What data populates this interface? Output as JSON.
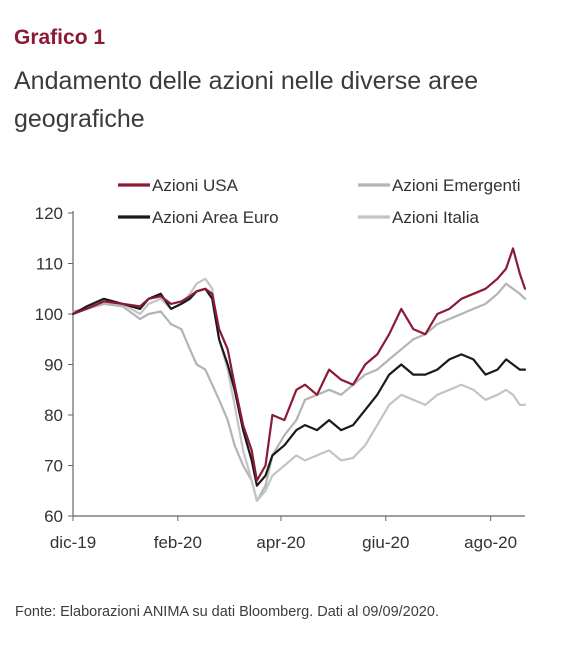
{
  "header": {
    "heading": "Grafico 1",
    "title": "Andamento delle azioni nelle diverse aree geografiche"
  },
  "source": "Fonte: Elaborazioni ANIMA su dati Bloomberg. Dati al 09/09/2020.",
  "chart_data": {
    "type": "line",
    "title": "",
    "xlabel": "",
    "ylabel": "",
    "ylim": [
      60,
      120
    ],
    "xlim": [
      "2019-12-02",
      "2020-08-21"
    ],
    "y_ticks": [
      60,
      70,
      80,
      90,
      100,
      110,
      120
    ],
    "x_ticks": [
      {
        "label": "dic-19",
        "date": "2019-12-02"
      },
      {
        "label": "feb-20",
        "date": "2020-02-01"
      },
      {
        "label": "apr-20",
        "date": "2020-04-01"
      },
      {
        "label": "giu-20",
        "date": "2020-06-01"
      },
      {
        "label": "ago-20",
        "date": "2020-08-01"
      }
    ],
    "grid": false,
    "legend_position": "top",
    "series": [
      {
        "name": "Azioni Emergenti",
        "color": "#b4b4b4",
        "points": [
          [
            "2019-12-02",
            100.5
          ],
          [
            "2019-12-10",
            101
          ],
          [
            "2019-12-20",
            102
          ],
          [
            "2019-12-31",
            101.5
          ],
          [
            "2020-01-10",
            99
          ],
          [
            "2020-01-15",
            100
          ],
          [
            "2020-01-22",
            100.5
          ],
          [
            "2020-01-28",
            98
          ],
          [
            "2020-02-03",
            97
          ],
          [
            "2020-02-08",
            93
          ],
          [
            "2020-02-12",
            90
          ],
          [
            "2020-02-17",
            89
          ],
          [
            "2020-02-21",
            86
          ],
          [
            "2020-02-25",
            83
          ],
          [
            "2020-03-01",
            79
          ],
          [
            "2020-03-05",
            74
          ],
          [
            "2020-03-10",
            70
          ],
          [
            "2020-03-15",
            67
          ],
          [
            "2020-03-18",
            63
          ],
          [
            "2020-03-23",
            66
          ],
          [
            "2020-03-27",
            72
          ],
          [
            "2020-04-03",
            76
          ],
          [
            "2020-04-10",
            79
          ],
          [
            "2020-04-15",
            83
          ],
          [
            "2020-04-22",
            84
          ],
          [
            "2020-04-29",
            85
          ],
          [
            "2020-05-06",
            84
          ],
          [
            "2020-05-13",
            86
          ],
          [
            "2020-05-20",
            88
          ],
          [
            "2020-05-27",
            89
          ],
          [
            "2020-06-03",
            91
          ],
          [
            "2020-06-10",
            93
          ],
          [
            "2020-06-17",
            95
          ],
          [
            "2020-06-24",
            96
          ],
          [
            "2020-07-01",
            98
          ],
          [
            "2020-07-08",
            99
          ],
          [
            "2020-07-15",
            100
          ],
          [
            "2020-07-22",
            101
          ],
          [
            "2020-07-29",
            102
          ],
          [
            "2020-08-05",
            104
          ],
          [
            "2020-08-10",
            106
          ],
          [
            "2020-08-14",
            105
          ],
          [
            "2020-08-18",
            104
          ],
          [
            "2020-08-21",
            103
          ]
        ]
      },
      {
        "name": "Azioni Italia",
        "color": "#c4c4c4",
        "points": [
          [
            "2019-12-02",
            100
          ],
          [
            "2019-12-10",
            101
          ],
          [
            "2019-12-20",
            102.5
          ],
          [
            "2019-12-31",
            102
          ],
          [
            "2020-01-10",
            100
          ],
          [
            "2020-01-15",
            102
          ],
          [
            "2020-01-22",
            103
          ],
          [
            "2020-01-28",
            101
          ],
          [
            "2020-02-03",
            102
          ],
          [
            "2020-02-08",
            104
          ],
          [
            "2020-02-12",
            106
          ],
          [
            "2020-02-17",
            107
          ],
          [
            "2020-02-21",
            105
          ],
          [
            "2020-02-25",
            95
          ],
          [
            "2020-03-01",
            89
          ],
          [
            "2020-03-05",
            82
          ],
          [
            "2020-03-10",
            73
          ],
          [
            "2020-03-15",
            67
          ],
          [
            "2020-03-18",
            63
          ],
          [
            "2020-03-23",
            65
          ],
          [
            "2020-03-27",
            68
          ],
          [
            "2020-04-03",
            70
          ],
          [
            "2020-04-10",
            72
          ],
          [
            "2020-04-15",
            71
          ],
          [
            "2020-04-22",
            72
          ],
          [
            "2020-04-29",
            73
          ],
          [
            "2020-05-06",
            71
          ],
          [
            "2020-05-13",
            71.5
          ],
          [
            "2020-05-20",
            74
          ],
          [
            "2020-05-27",
            78
          ],
          [
            "2020-06-03",
            82
          ],
          [
            "2020-06-10",
            84
          ],
          [
            "2020-06-17",
            83
          ],
          [
            "2020-06-24",
            82
          ],
          [
            "2020-07-01",
            84
          ],
          [
            "2020-07-08",
            85
          ],
          [
            "2020-07-15",
            86
          ],
          [
            "2020-07-22",
            85
          ],
          [
            "2020-07-29",
            83
          ],
          [
            "2020-08-05",
            84
          ],
          [
            "2020-08-10",
            85
          ],
          [
            "2020-08-14",
            84
          ],
          [
            "2020-08-18",
            82
          ],
          [
            "2020-08-21",
            82
          ]
        ]
      },
      {
        "name": "Azioni Area Euro",
        "color": "#1a1a1a",
        "points": [
          [
            "2019-12-02",
            100
          ],
          [
            "2019-12-10",
            101.5
          ],
          [
            "2019-12-20",
            103
          ],
          [
            "2019-12-31",
            102
          ],
          [
            "2020-01-10",
            101
          ],
          [
            "2020-01-15",
            103
          ],
          [
            "2020-01-22",
            104
          ],
          [
            "2020-01-28",
            101
          ],
          [
            "2020-02-03",
            102
          ],
          [
            "2020-02-08",
            103
          ],
          [
            "2020-02-12",
            104.5
          ],
          [
            "2020-02-17",
            105
          ],
          [
            "2020-02-21",
            103
          ],
          [
            "2020-02-25",
            95
          ],
          [
            "2020-03-01",
            90
          ],
          [
            "2020-03-05",
            85
          ],
          [
            "2020-03-10",
            77
          ],
          [
            "2020-03-15",
            71
          ],
          [
            "2020-03-18",
            66
          ],
          [
            "2020-03-23",
            68
          ],
          [
            "2020-03-27",
            72
          ],
          [
            "2020-04-03",
            74
          ],
          [
            "2020-04-10",
            77
          ],
          [
            "2020-04-15",
            78
          ],
          [
            "2020-04-22",
            77
          ],
          [
            "2020-04-29",
            79
          ],
          [
            "2020-05-06",
            77
          ],
          [
            "2020-05-13",
            78
          ],
          [
            "2020-05-20",
            81
          ],
          [
            "2020-05-27",
            84
          ],
          [
            "2020-06-03",
            88
          ],
          [
            "2020-06-10",
            90
          ],
          [
            "2020-06-17",
            88
          ],
          [
            "2020-06-24",
            88
          ],
          [
            "2020-07-01",
            89
          ],
          [
            "2020-07-08",
            91
          ],
          [
            "2020-07-15",
            92
          ],
          [
            "2020-07-22",
            91
          ],
          [
            "2020-07-29",
            88
          ],
          [
            "2020-08-05",
            89
          ],
          [
            "2020-08-10",
            91
          ],
          [
            "2020-08-14",
            90
          ],
          [
            "2020-08-18",
            89
          ],
          [
            "2020-08-21",
            89
          ]
        ]
      },
      {
        "name": "Azioni USA",
        "color": "#8b1a35",
        "points": [
          [
            "2019-12-02",
            100
          ],
          [
            "2019-12-10",
            101
          ],
          [
            "2019-12-20",
            102.5
          ],
          [
            "2019-12-31",
            102
          ],
          [
            "2020-01-10",
            101.5
          ],
          [
            "2020-01-15",
            103
          ],
          [
            "2020-01-22",
            103.5
          ],
          [
            "2020-01-28",
            102
          ],
          [
            "2020-02-03",
            102.5
          ],
          [
            "2020-02-08",
            103.5
          ],
          [
            "2020-02-12",
            104.5
          ],
          [
            "2020-02-17",
            105
          ],
          [
            "2020-02-21",
            104
          ],
          [
            "2020-02-25",
            97
          ],
          [
            "2020-03-01",
            93
          ],
          [
            "2020-03-05",
            86
          ],
          [
            "2020-03-10",
            78
          ],
          [
            "2020-03-15",
            73
          ],
          [
            "2020-03-18",
            67
          ],
          [
            "2020-03-23",
            70
          ],
          [
            "2020-03-27",
            80
          ],
          [
            "2020-04-03",
            79
          ],
          [
            "2020-04-10",
            85
          ],
          [
            "2020-04-15",
            86
          ],
          [
            "2020-04-22",
            84
          ],
          [
            "2020-04-29",
            89
          ],
          [
            "2020-05-06",
            87
          ],
          [
            "2020-05-13",
            86
          ],
          [
            "2020-05-20",
            90
          ],
          [
            "2020-05-27",
            92
          ],
          [
            "2020-06-03",
            96
          ],
          [
            "2020-06-10",
            101
          ],
          [
            "2020-06-17",
            97
          ],
          [
            "2020-06-24",
            96
          ],
          [
            "2020-07-01",
            100
          ],
          [
            "2020-07-08",
            101
          ],
          [
            "2020-07-15",
            103
          ],
          [
            "2020-07-22",
            104
          ],
          [
            "2020-07-29",
            105
          ],
          [
            "2020-08-05",
            107
          ],
          [
            "2020-08-10",
            109
          ],
          [
            "2020-08-14",
            113
          ],
          [
            "2020-08-18",
            108
          ],
          [
            "2020-08-21",
            105
          ]
        ]
      }
    ]
  }
}
